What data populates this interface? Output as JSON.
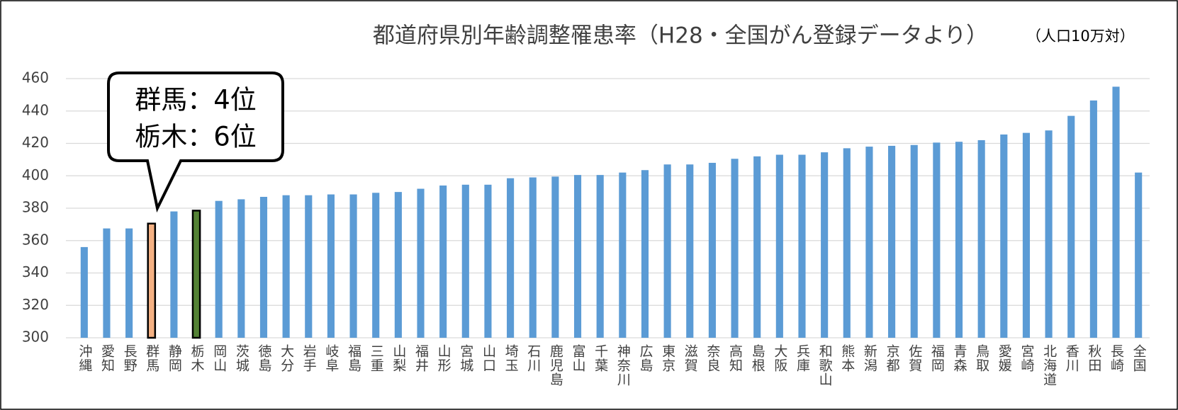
{
  "chart_data": {
    "type": "bar",
    "title": "都道府県別年齢調整罹患率（H28・全国がん登録データより）",
    "subtitle": "（人口10万対）",
    "annotation": [
      "群馬：4位",
      "栃木：6位"
    ],
    "categories": [
      "沖縄",
      "愛知",
      "長野",
      "群馬",
      "静岡",
      "栃木",
      "岡山",
      "茨城",
      "徳島",
      "大分",
      "岩手",
      "岐阜",
      "福島",
      "三重",
      "山梨",
      "福井",
      "山形",
      "宮城",
      "山口",
      "埼玉",
      "石川",
      "鹿児島",
      "富山",
      "千葉",
      "神奈川",
      "広島",
      "東京",
      "滋賀",
      "奈良",
      "高知",
      "島根",
      "大阪",
      "兵庫",
      "和歌山",
      "熊本",
      "新潟",
      "京都",
      "佐賀",
      "福岡",
      "青森",
      "鳥取",
      "愛媛",
      "宮崎",
      "北海道",
      "香川",
      "秋田",
      "長崎",
      "全国"
    ],
    "values": [
      356,
      367.5,
      367.5,
      370.5,
      378,
      378.5,
      384.5,
      385.5,
      387,
      388,
      388,
      388.5,
      388.5,
      389.5,
      390,
      392,
      394,
      394.5,
      394.5,
      398.5,
      399,
      399.5,
      400.5,
      400.5,
      402,
      403.5,
      407,
      407,
      408,
      410.5,
      412,
      413,
      413,
      414.5,
      417,
      418,
      418.5,
      419,
      420.5,
      421,
      422,
      425.5,
      426.5,
      428,
      437,
      446.5,
      455,
      402
    ],
    "color": "#5b9bd5",
    "bar_colors": [
      "#5b9bd5",
      "#5b9bd5",
      "#5b9bd5",
      "#f4b183",
      "#5b9bd5",
      "#548235",
      "#5b9bd5",
      "#5b9bd5",
      "#5b9bd5",
      "#5b9bd5",
      "#5b9bd5",
      "#5b9bd5",
      "#5b9bd5",
      "#5b9bd5",
      "#5b9bd5",
      "#5b9bd5",
      "#5b9bd5",
      "#5b9bd5",
      "#5b9bd5",
      "#5b9bd5",
      "#5b9bd5",
      "#5b9bd5",
      "#5b9bd5",
      "#5b9bd5",
      "#5b9bd5",
      "#5b9bd5",
      "#5b9bd5",
      "#5b9bd5",
      "#5b9bd5",
      "#5b9bd5",
      "#5b9bd5",
      "#5b9bd5",
      "#5b9bd5",
      "#5b9bd5",
      "#5b9bd5",
      "#5b9bd5",
      "#5b9bd5",
      "#5b9bd5",
      "#5b9bd5",
      "#5b9bd5",
      "#5b9bd5",
      "#5b9bd5",
      "#5b9bd5",
      "#5b9bd5",
      "#5b9bd5",
      "#5b9bd5",
      "#5b9bd5",
      "#5b9bd5"
    ],
    "ylim": [
      300,
      460
    ],
    "yticks": [
      300,
      320,
      340,
      360,
      380,
      400,
      420,
      440,
      460
    ],
    "grid": true
  }
}
